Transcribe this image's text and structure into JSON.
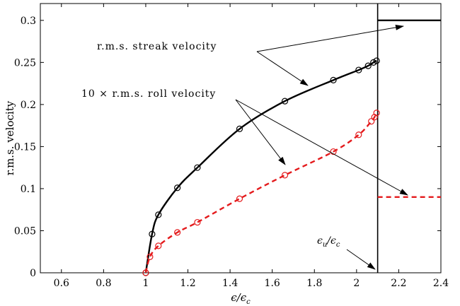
{
  "chart_data": {
    "type": "line",
    "title": "",
    "xlabel": {
      "base": "ϵ",
      "sep": "/",
      "den": "ϵ",
      "den_sub": "c"
    },
    "ylabel": "r.m.s. velocity",
    "xlim": [
      0.5,
      2.4
    ],
    "ylim": [
      0,
      0.32
    ],
    "xticks": [
      0.6,
      0.8,
      1,
      1.2,
      1.4,
      1.6,
      1.8,
      2,
      2.2,
      2.4
    ],
    "xtick_labels": [
      "0.6",
      "0.8",
      "1",
      "1.2",
      "1.4",
      "1.6",
      "1.8",
      "2",
      "2.2",
      "2.4"
    ],
    "yticks": [
      0,
      0.05,
      0.1,
      0.15,
      0.2,
      0.25,
      0.3
    ],
    "ytick_labels": [
      "0",
      "0.05",
      "0.1",
      "0.15",
      "0.2",
      "0.25",
      "0.3"
    ],
    "grid": false,
    "series": [
      {
        "name": "r.m.s. streak velocity",
        "color": "#000000",
        "style": "solid",
        "marker": "circle",
        "x": [
          1.0,
          1.03,
          1.06,
          1.15,
          1.245,
          1.445,
          1.66,
          1.89,
          2.01,
          2.055,
          2.08,
          2.095
        ],
        "y": [
          0.0,
          0.046,
          0.069,
          0.101,
          0.125,
          0.171,
          0.204,
          0.229,
          0.241,
          0.246,
          0.25,
          0.252
        ]
      },
      {
        "name": "10 × r.m.s. roll velocity",
        "color": "#e41a1c",
        "style": "dashed",
        "marker": "circle",
        "x": [
          1.0,
          1.02,
          1.06,
          1.15,
          1.245,
          1.445,
          1.66,
          1.89,
          2.01,
          2.07,
          2.085,
          2.095
        ],
        "y": [
          0.0,
          0.019,
          0.032,
          0.048,
          0.06,
          0.088,
          0.116,
          0.144,
          0.164,
          0.18,
          0.185,
          0.19
        ]
      }
    ],
    "saturated_levels": [
      {
        "series": "r.m.s. streak velocity",
        "x_from": 2.1,
        "x_to": 2.4,
        "y": 0.3,
        "color": "#000000",
        "style": "solid"
      },
      {
        "series": "10 × r.m.s. roll velocity",
        "x_from": 2.1,
        "x_to": 2.4,
        "y": 0.09,
        "color": "#e41a1c",
        "style": "dashed"
      }
    ],
    "threshold_line": {
      "x": 2.1
    },
    "annotations": [
      {
        "text": "r.m.s. streak velocity",
        "kind": "label"
      },
      {
        "text": "10 × r.m.s. roll velocity",
        "kind": "label"
      },
      {
        "text_base": "ϵ",
        "text_base_sub": "u",
        "text_sep": "/",
        "text_den": "ϵ",
        "text_den_sub": "c",
        "kind": "threshold-label"
      }
    ]
  }
}
